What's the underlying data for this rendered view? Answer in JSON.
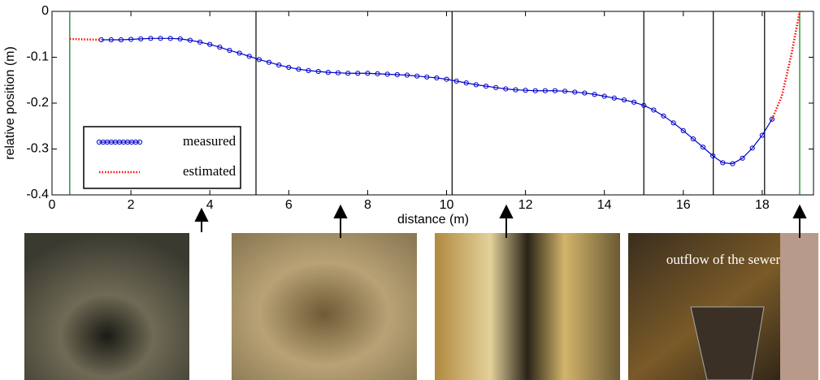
{
  "chart_data": {
    "type": "line",
    "xlabel": "distance (m)",
    "ylabel": "relative position (m)",
    "xlim": [
      0,
      19.3
    ],
    "ylim": [
      -0.4,
      0
    ],
    "xticks": [
      0,
      2,
      4,
      6,
      8,
      10,
      12,
      14,
      16,
      18
    ],
    "yticks": [
      -0.4,
      -0.3,
      -0.2,
      -0.1,
      0
    ],
    "legend": "lower left",
    "vlines": [
      {
        "x": 0.45,
        "color": "#008000"
      },
      {
        "x": 5.17,
        "color": "#000000"
      },
      {
        "x": 10.14,
        "color": "#000000"
      },
      {
        "x": 15.0,
        "color": "#000000"
      },
      {
        "x": 16.76,
        "color": "#000000"
      },
      {
        "x": 18.06,
        "color": "#000000"
      },
      {
        "x": 18.95,
        "color": "#008000"
      }
    ],
    "series": [
      {
        "name": "measured",
        "color": "#0000cc",
        "marker": "circle",
        "x": [
          1.25,
          1.5,
          1.75,
          2.0,
          2.25,
          2.5,
          2.75,
          3.0,
          3.25,
          3.5,
          3.75,
          4.0,
          4.25,
          4.5,
          4.75,
          5.0,
          5.25,
          5.5,
          5.75,
          6.0,
          6.25,
          6.5,
          6.75,
          7.0,
          7.25,
          7.5,
          7.75,
          8.0,
          8.25,
          8.5,
          8.75,
          9.0,
          9.25,
          9.5,
          9.75,
          10.0,
          10.25,
          10.5,
          10.75,
          11.0,
          11.25,
          11.5,
          11.75,
          12.0,
          12.25,
          12.5,
          12.75,
          13.0,
          13.25,
          13.5,
          13.75,
          14.0,
          14.25,
          14.5,
          14.75,
          15.0,
          15.25,
          15.5,
          15.75,
          16.0,
          16.25,
          16.5,
          16.75,
          17.0,
          17.25,
          17.5,
          17.75,
          18.0,
          18.25
        ],
        "values": [
          -0.062,
          -0.062,
          -0.062,
          -0.061,
          -0.06,
          -0.059,
          -0.059,
          -0.059,
          -0.06,
          -0.063,
          -0.067,
          -0.072,
          -0.078,
          -0.085,
          -0.091,
          -0.098,
          -0.105,
          -0.111,
          -0.117,
          -0.122,
          -0.126,
          -0.129,
          -0.131,
          -0.133,
          -0.134,
          -0.135,
          -0.135,
          -0.135,
          -0.136,
          -0.137,
          -0.138,
          -0.139,
          -0.141,
          -0.143,
          -0.145,
          -0.148,
          -0.152,
          -0.156,
          -0.16,
          -0.163,
          -0.166,
          -0.169,
          -0.171,
          -0.172,
          -0.173,
          -0.173,
          -0.173,
          -0.174,
          -0.176,
          -0.178,
          -0.181,
          -0.185,
          -0.189,
          -0.193,
          -0.198,
          -0.205,
          -0.215,
          -0.228,
          -0.243,
          -0.26,
          -0.278,
          -0.296,
          -0.315,
          -0.33,
          -0.332,
          -0.32,
          -0.298,
          -0.27,
          -0.235
        ]
      },
      {
        "name": "estimated",
        "color": "#ff0000",
        "marker": "dotted",
        "x": [
          0.45,
          0.8,
          1.25,
          1.5,
          18.25,
          18.5,
          18.75,
          18.95
        ],
        "values": [
          -0.06,
          -0.061,
          -0.062,
          null,
          -0.235,
          -0.184,
          -0.09,
          0
        ]
      }
    ]
  },
  "photos": {
    "annotation": "outflow of the sewer"
  }
}
